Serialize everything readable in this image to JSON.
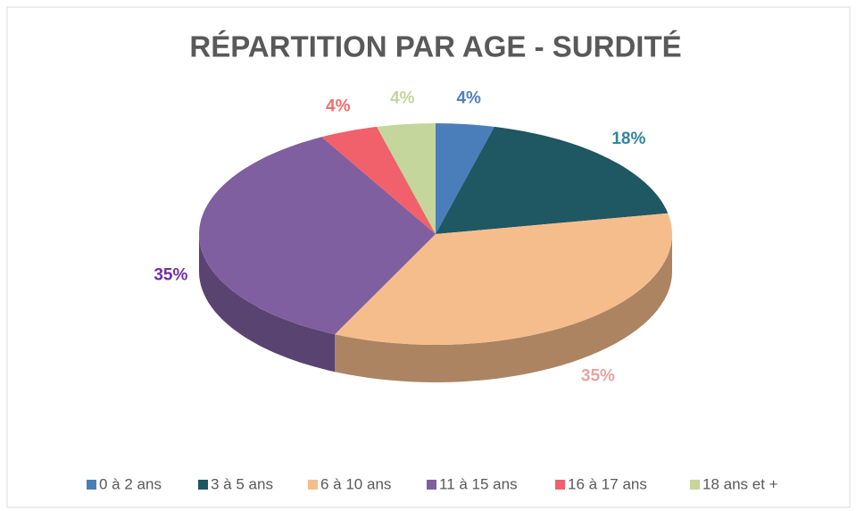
{
  "chart_data": {
    "type": "pie3d",
    "title": "RÉPARTITION PAR AGE - SURDITÉ",
    "categories": [
      "0 à 2 ans",
      "3 à 5 ans",
      "6 à 10 ans",
      "11 à 15 ans",
      "16 à 17 ans",
      "18 ans et +"
    ],
    "values": [
      4,
      18,
      35,
      35,
      4,
      4
    ],
    "value_labels": [
      "4%",
      "18%",
      "35%",
      "35%",
      "4%",
      "4%"
    ],
    "colors": [
      "#4a7ebb",
      "#1f5763",
      "#f6bd8c",
      "#7f5fa0",
      "#f0616b",
      "#c4d69b"
    ],
    "label_colors": [
      "#4f81bd",
      "#31859c",
      "#e6a3a3",
      "#7030a0",
      "#f26d6d",
      "#c3d69b"
    ],
    "legend": "bottom"
  }
}
